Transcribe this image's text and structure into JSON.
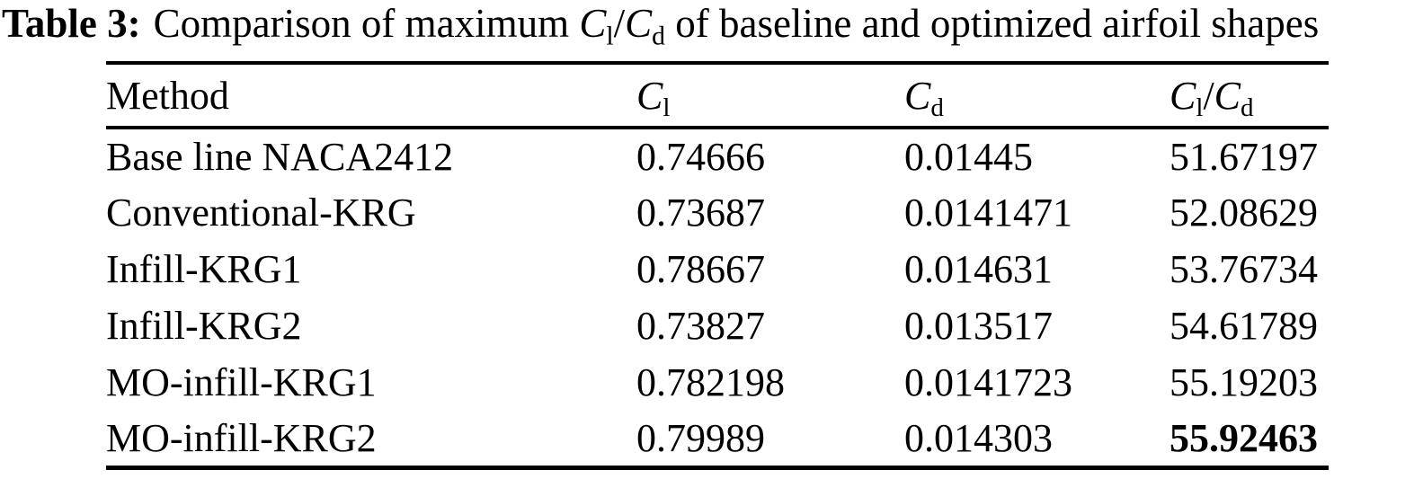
{
  "caption": {
    "label": "Table 3:",
    "pre": "Comparison of maximum ",
    "math": {
      "c1": "C",
      "s1": "l",
      "slash": "/",
      "c2": "C",
      "s2": "d"
    },
    "post": " of baseline and optimized airfoil shapes"
  },
  "table": {
    "headers": {
      "method": "Method",
      "cl": {
        "c": "C",
        "sub": "l"
      },
      "cd": {
        "c": "C",
        "sub": "d"
      },
      "ratio": {
        "c1": "C",
        "s1": "l",
        "slash": "/",
        "c2": "C",
        "s2": "d"
      }
    },
    "rows": [
      {
        "method": "Base line NACA2412",
        "cl": "0.74666",
        "cd": "0.01445",
        "ratio": "51.67197"
      },
      {
        "method": "Conventional-KRG",
        "cl": "0.73687",
        "cd": "0.0141471",
        "ratio": "52.08629"
      },
      {
        "method": "Infill-KRG1",
        "cl": "0.78667",
        "cd": "0.014631",
        "ratio": "53.76734"
      },
      {
        "method": "Infill-KRG2",
        "cl": "0.73827",
        "cd": "0.013517",
        "ratio": "54.61789"
      },
      {
        "method": "MO-infill-KRG1",
        "cl": "0.782198",
        "cd": "0.0141723",
        "ratio": "55.19203"
      },
      {
        "method": "MO-infill-KRG2",
        "cl": "0.79989",
        "cd": "0.014303",
        "ratio": "55.92463"
      }
    ],
    "colors": {
      "text": "#000000",
      "background": "#ffffff",
      "rule": "#000000"
    }
  }
}
